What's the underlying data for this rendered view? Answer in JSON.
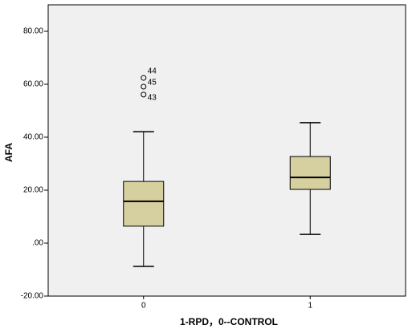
{
  "chart_data": {
    "type": "box",
    "categories": [
      "0",
      "1"
    ],
    "boxes": [
      {
        "min": -8.8,
        "q1": 6.4,
        "median": 15.8,
        "q3": 23.3,
        "max": 42.1,
        "outliers": [
          62.4,
          59.1,
          56.1
        ],
        "outlier_labels": [
          "44",
          "45",
          "43"
        ]
      },
      {
        "min": 3.3,
        "q1": 20.3,
        "median": 24.8,
        "q3": 32.7,
        "max": 45.5,
        "outliers": [],
        "outlier_labels": []
      }
    ],
    "color": "#d6d0a0",
    "x_label": "1-RPD，0--CONTROL",
    "y_label": "AFA",
    "ylim": [
      -20,
      90
    ],
    "yticks": [
      {
        "value": -20,
        "label": "-20.00"
      },
      {
        "value": 0,
        "label": ".00"
      },
      {
        "value": 20,
        "label": "20.00"
      },
      {
        "value": 40,
        "label": "40.00"
      },
      {
        "value": 60,
        "label": "60.00"
      },
      {
        "value": 80,
        "label": "80.00"
      }
    ]
  }
}
